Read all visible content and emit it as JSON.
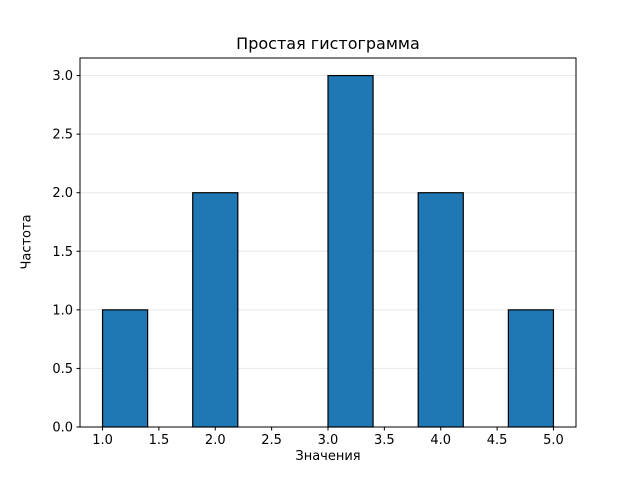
{
  "figure": {
    "background": "#ffffff"
  },
  "chart_data": {
    "type": "bar",
    "title": "Простая гистограмма",
    "xlabel": "Значения",
    "ylabel": "Частота",
    "bars": [
      {
        "x0": 1.0,
        "x1": 1.4,
        "height": 1
      },
      {
        "x0": 1.8,
        "x1": 2.2,
        "height": 2
      },
      {
        "x0": 3.0,
        "x1": 3.4,
        "height": 3
      },
      {
        "x0": 3.8,
        "x1": 4.2,
        "height": 2
      },
      {
        "x0": 4.6,
        "x1": 5.0,
        "height": 1
      }
    ],
    "xlim": [
      0.8,
      5.2
    ],
    "ylim": [
      0,
      3.15
    ],
    "xticks": {
      "values": [
        1.0,
        1.5,
        2.0,
        2.5,
        3.0,
        3.5,
        4.0,
        4.5,
        5.0
      ],
      "labels": [
        "1.0",
        "1.5",
        "2.0",
        "2.5",
        "3.0",
        "3.5",
        "4.0",
        "4.5",
        "5.0"
      ]
    },
    "yticks": {
      "values": [
        0.0,
        0.5,
        1.0,
        1.5,
        2.0,
        2.5,
        3.0
      ],
      "labels": [
        "0.0",
        "0.5",
        "1.0",
        "1.5",
        "2.0",
        "2.5",
        "3.0"
      ]
    },
    "grid": {
      "axis": "y",
      "color": "#e7e7e7"
    },
    "colors": {
      "bar_fill": "#1f77b4",
      "bar_edge": "#000000",
      "spine": "#000000",
      "tick": "#000000"
    },
    "legend": "none"
  }
}
